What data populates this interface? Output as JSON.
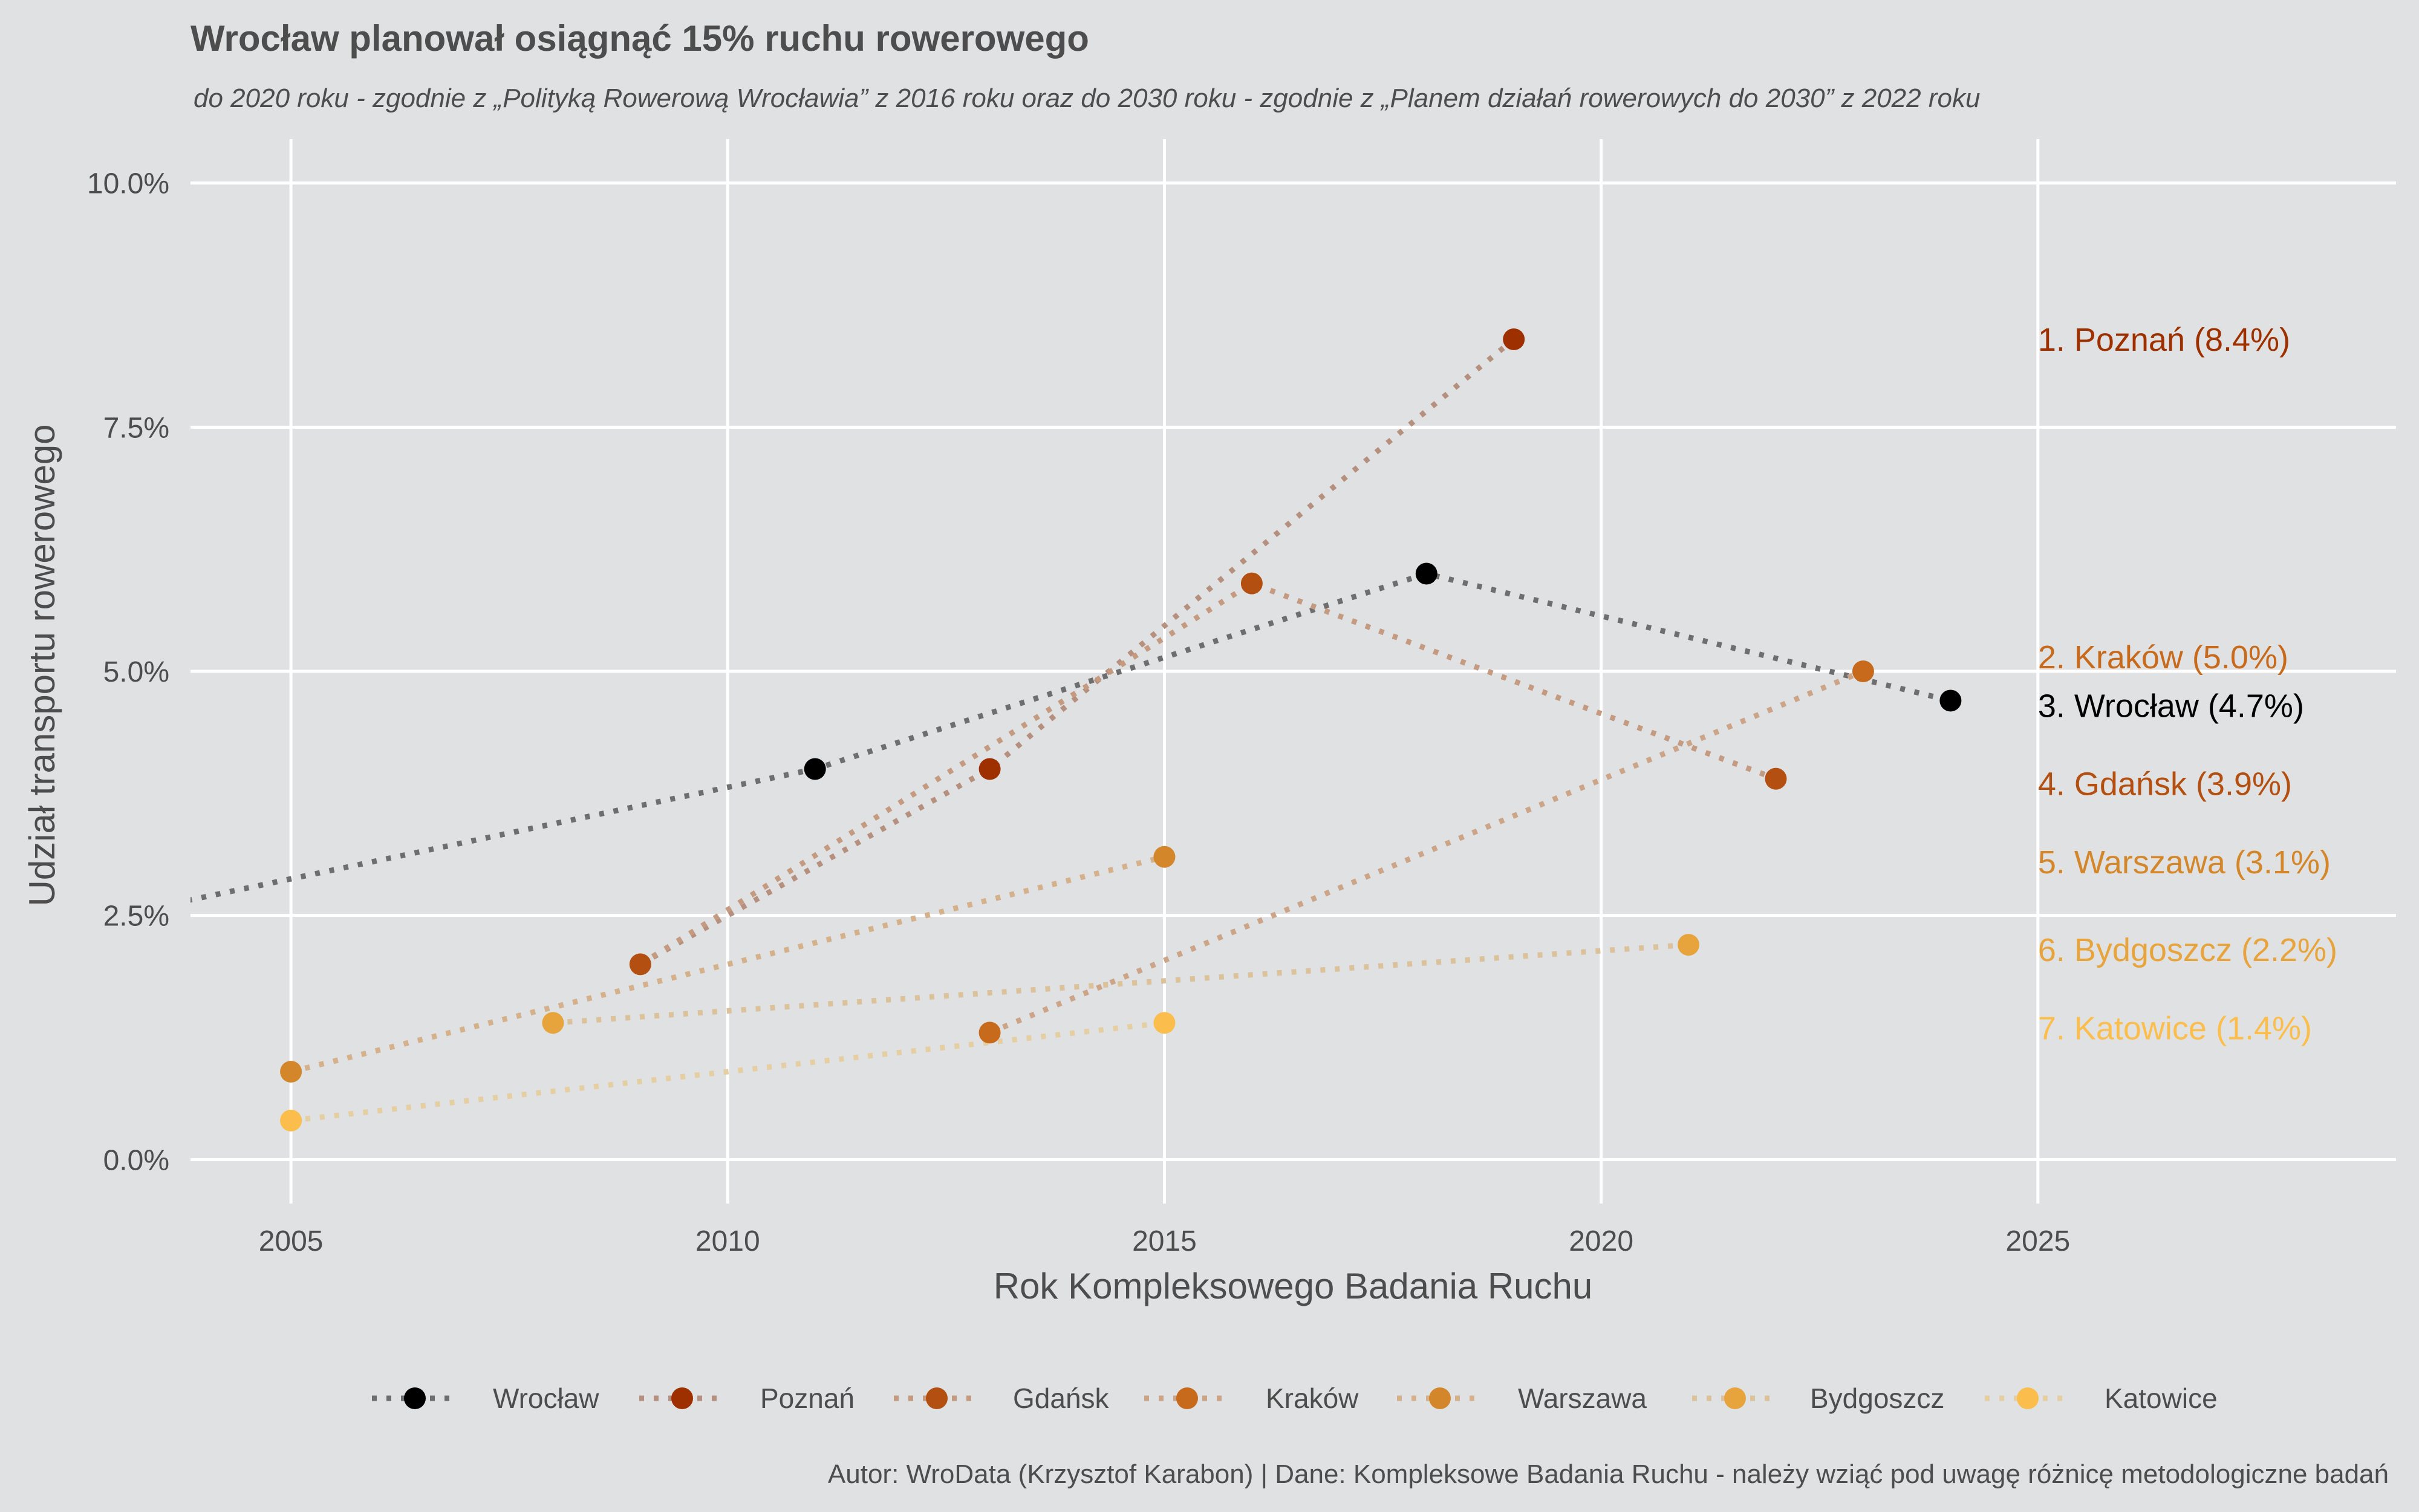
{
  "chart_data": {
    "type": "line",
    "title": "Wrocław planował osiągnąć 15% ruchu rowerowego",
    "subtitle": "do 2020 roku - zgodnie z „Polityką Rowerową Wrocławia” z 2016 roku oraz do 2030 roku - zgodnie z „Planem działań rowerowych do 2030” z 2022 roku",
    "xlabel": "Rok Kompleksowego Badania Ruchu",
    "ylabel": "Udział transportu rowerowego",
    "caption": "Autor: WroData (Krzysztof Karabon) | Dane: Kompleksowe Badania Ruchu - należy wziąć pod uwagę różnicę metodologiczne badań",
    "xlim": [
      2003.85,
      2029.1
    ],
    "ylim": [
      -0.45,
      10.45
    ],
    "x_ticks": [
      2005,
      2010,
      2015,
      2020,
      2025
    ],
    "x_tick_labels": [
      "2005",
      "2010",
      "2015",
      "2020",
      "2025"
    ],
    "y_ticks": [
      0,
      2.5,
      5,
      7.5,
      10
    ],
    "y_tick_labels": [
      "0.0%",
      "2.5%",
      "5.0%",
      "7.5%",
      "10.0%"
    ],
    "grid": true,
    "legend_position": "bottom",
    "label_x": 2025,
    "series": [
      {
        "name": "Wrocław",
        "color": "#000000",
        "line_color": "#6e6e6e",
        "points": [
          [
            2003,
            2.5
          ],
          [
            2011,
            4.0
          ],
          [
            2018,
            6.0
          ],
          [
            2024,
            4.7
          ]
        ],
        "draw_points": [
          false,
          true,
          true,
          true
        ],
        "end_label": "3. Wrocław (4.7%)"
      },
      {
        "name": "Poznań",
        "color": "#9e3000",
        "line_color": "#b6907f",
        "points": [
          [
            2009,
            2.0
          ],
          [
            2013,
            4.0
          ],
          [
            2019,
            8.4
          ]
        ],
        "draw_points": [
          false,
          true,
          true
        ],
        "end_label": "1. Poznań (8.4%)"
      },
      {
        "name": "Gdańsk",
        "color": "#b34f10",
        "line_color": "#c49a80",
        "points": [
          [
            2009,
            2.0
          ],
          [
            2016,
            5.9
          ],
          [
            2022,
            3.9
          ]
        ],
        "draw_points": [
          true,
          true,
          true
        ],
        "end_label": "4. Gdańsk (3.9%)"
      },
      {
        "name": "Kraków",
        "color": "#c76a1c",
        "line_color": "#cca487",
        "points": [
          [
            2013,
            1.3
          ],
          [
            2023,
            5.0
          ]
        ],
        "draw_points": [
          true,
          true
        ],
        "end_label": "2. Kraków (5.0%)"
      },
      {
        "name": "Warszawa",
        "color": "#d4872a",
        "line_color": "#d4b08b",
        "points": [
          [
            2005,
            0.9
          ],
          [
            2015,
            3.1
          ]
        ],
        "draw_points": [
          true,
          true
        ],
        "end_label": "5. Warszawa (3.1%)"
      },
      {
        "name": "Bydgoszcz",
        "color": "#e8a43c",
        "line_color": "#dcc29a",
        "points": [
          [
            2008,
            1.4
          ],
          [
            2021,
            2.2
          ]
        ],
        "draw_points": [
          true,
          true
        ],
        "end_label": "6. Bydgoszcz (2.2%)"
      },
      {
        "name": "Katowice",
        "color": "#fbbe4c",
        "line_color": "#e5cfa2",
        "points": [
          [
            2005,
            0.4
          ],
          [
            2015,
            1.4
          ]
        ],
        "draw_points": [
          true,
          true
        ],
        "end_label": "7. Katowice (1.4%)"
      }
    ],
    "end_labels_order": [
      {
        "text": "1. Poznań (8.4%)",
        "series": "Poznań",
        "y": 8.4
      },
      {
        "text": "2. Kraków (5.0%)",
        "series": "Kraków",
        "y": 5.15
      },
      {
        "text": "3. Wrocław (4.7%)",
        "series": "Wrocław",
        "y": 4.65
      },
      {
        "text": "4. Gdańsk (3.9%)",
        "series": "Gdańsk",
        "y": 3.85
      },
      {
        "text": "5. Warszawa (3.1%)",
        "series": "Warszawa",
        "y": 3.05
      },
      {
        "text": "6. Bydgoszcz (2.2%)",
        "series": "Bydgoszcz",
        "y": 2.15
      },
      {
        "text": "7. Katowice (1.4%)",
        "series": "Katowice",
        "y": 1.35
      }
    ]
  }
}
